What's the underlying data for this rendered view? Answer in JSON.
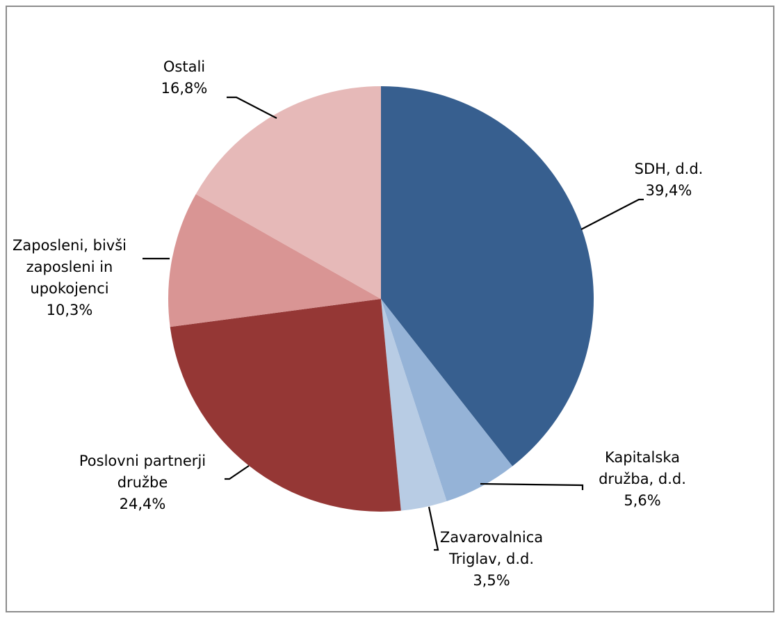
{
  "chart_data": {
    "type": "pie",
    "title": "",
    "legend": "none",
    "series": [
      {
        "values": [
          39.4,
          5.6,
          3.5,
          24.4,
          10.3,
          16.8
        ],
        "unit": "%"
      }
    ],
    "slices": [
      {
        "lines": [
          "SDH, d.d.",
          "39,4%"
        ],
        "value": 39.4,
        "color": "#375f8f"
      },
      {
        "lines": [
          "Kapitalska",
          "družba, d.d.",
          "5,6%"
        ],
        "value": 5.6,
        "color": "#95b3d7"
      },
      {
        "lines": [
          "Zavarovalnica",
          "Triglav, d.d.",
          "3,5%"
        ],
        "value": 3.5,
        "color": "#b8cce4"
      },
      {
        "lines": [
          "Poslovni partnerji",
          "družbe",
          "24,4%"
        ],
        "value": 24.4,
        "color": "#953735"
      },
      {
        "lines": [
          "Zaposleni, bivši",
          "zaposleni in",
          "upokojenci",
          "10,3%"
        ],
        "value": 10.3,
        "color": "#d99594"
      },
      {
        "lines": [
          "Ostali",
          "16,8%"
        ],
        "value": 16.8,
        "color": "#e6b9b8"
      }
    ]
  }
}
